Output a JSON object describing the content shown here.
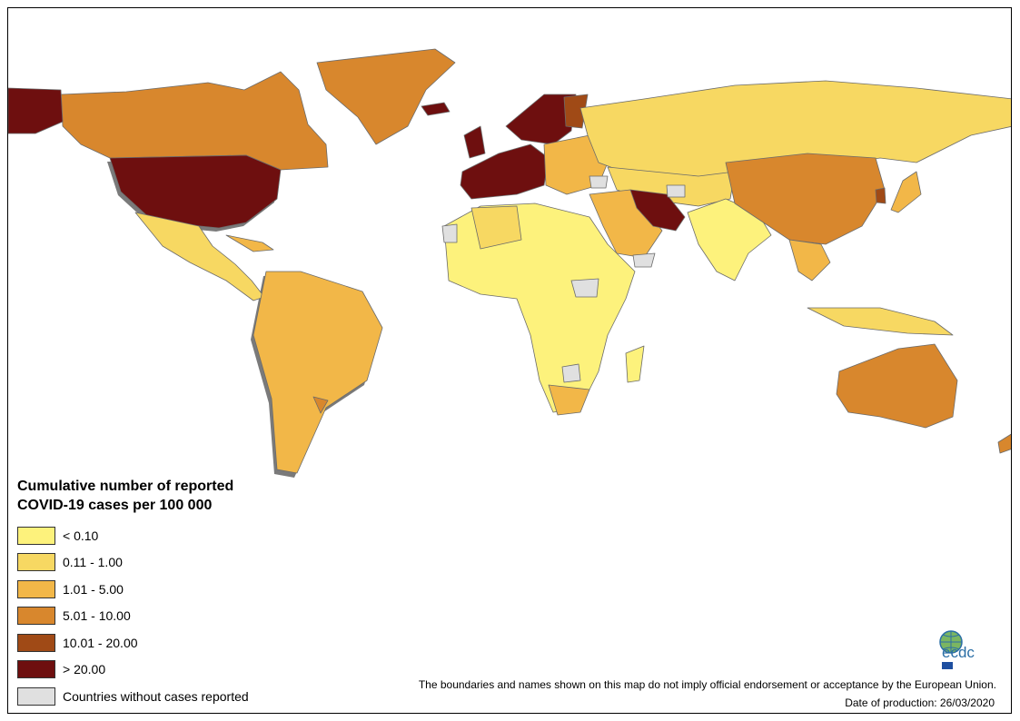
{
  "legend": {
    "title_line1": "Cumulative number of reported",
    "title_line2": "COVID-19 cases per 100 000",
    "items": [
      {
        "label": "< 0.10",
        "color": "#fdf27c"
      },
      {
        "label": "0.11 - 1.00",
        "color": "#f7d862"
      },
      {
        "label": "1.01 - 5.00",
        "color": "#f2b748"
      },
      {
        "label": "5.01 - 10.00",
        "color": "#d8872d"
      },
      {
        "label": "10.01 - 20.00",
        "color": "#a04a16"
      },
      {
        "label": "> 20.00",
        "color": "#6e0f0f"
      },
      {
        "label": "Countries without cases reported",
        "color": "#e0e0e0"
      }
    ]
  },
  "footer": {
    "disclaimer": "The boundaries and names shown on this map do not imply official endorsement or acceptance by the European Union.",
    "production_date": "Date of production: 26/03/2020"
  },
  "logo": {
    "text": "ecdc"
  }
}
